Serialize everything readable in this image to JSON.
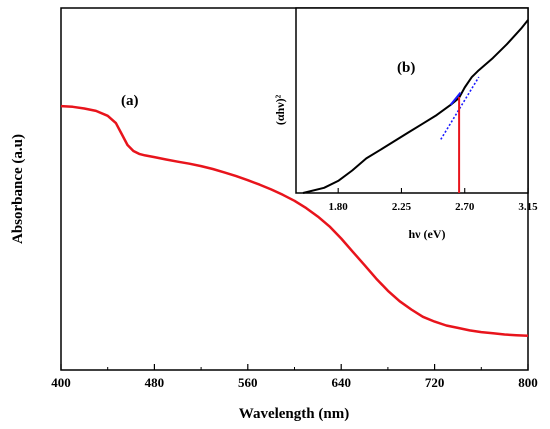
{
  "chart_data": [
    {
      "type": "line",
      "panel_label": "(a)",
      "xlabel": "Wavelength (nm)",
      "ylabel": "Absorbance (a.u)",
      "xlim": [
        400,
        800
      ],
      "ylim": [
        0,
        1
      ],
      "x_ticks": [
        "400",
        "480",
        "560",
        "640",
        "720",
        "800"
      ],
      "y_ticks_shown": false,
      "series": [
        {
          "color": "#e8141c",
          "x": [
            400,
            410,
            420,
            430,
            440,
            447,
            452,
            457,
            462,
            467,
            472,
            480,
            490,
            500,
            510,
            520,
            530,
            540,
            550,
            560,
            570,
            580,
            590,
            600,
            610,
            620,
            630,
            640,
            650,
            660,
            670,
            680,
            690,
            700,
            710,
            720,
            730,
            740,
            750,
            760,
            770,
            780,
            790,
            800
          ],
          "y": [
            0.975,
            0.972,
            0.965,
            0.955,
            0.935,
            0.905,
            0.86,
            0.815,
            0.79,
            0.778,
            0.772,
            0.765,
            0.755,
            0.746,
            0.738,
            0.728,
            0.716,
            0.702,
            0.687,
            0.67,
            0.652,
            0.632,
            0.61,
            0.585,
            0.555,
            0.52,
            0.48,
            0.43,
            0.375,
            0.32,
            0.265,
            0.215,
            0.172,
            0.138,
            0.108,
            0.088,
            0.072,
            0.062,
            0.052,
            0.045,
            0.04,
            0.035,
            0.032,
            0.03
          ]
        }
      ]
    },
    {
      "type": "line",
      "panel_label": "(b)",
      "xlabel": "hν (eV)",
      "ylabel": "(αhν)²",
      "xlim": [
        1.5,
        3.15
      ],
      "ylim": [
        0,
        1
      ],
      "x_ticks": [
        "1.80",
        "2.25",
        "2.70",
        "3.15"
      ],
      "y_ticks_shown": false,
      "series": [
        {
          "color": "#000000",
          "x": [
            1.55,
            1.7,
            1.8,
            1.9,
            2.0,
            2.1,
            2.2,
            2.3,
            2.4,
            2.5,
            2.6,
            2.66,
            2.7,
            2.75,
            2.8,
            2.9,
            3.0,
            3.1,
            3.15
          ],
          "y": [
            0.0,
            0.03,
            0.07,
            0.13,
            0.2,
            0.25,
            0.3,
            0.35,
            0.4,
            0.45,
            0.51,
            0.55,
            0.61,
            0.67,
            0.71,
            0.78,
            0.86,
            0.95,
            1.0
          ]
        },
        {
          "color": "#1a1aff",
          "x": [
            2.6,
            2.67
          ],
          "y": [
            0.51,
            0.58
          ]
        }
      ],
      "tangent": {
        "color": "#1a1aff",
        "x": [
          2.53,
          2.8
        ],
        "y": [
          0.31,
          0.67
        ]
      },
      "bandgap_marker": {
        "color": "#e8141c",
        "x": 2.66,
        "y_from": 0.0,
        "y_to": 0.555
      }
    }
  ]
}
